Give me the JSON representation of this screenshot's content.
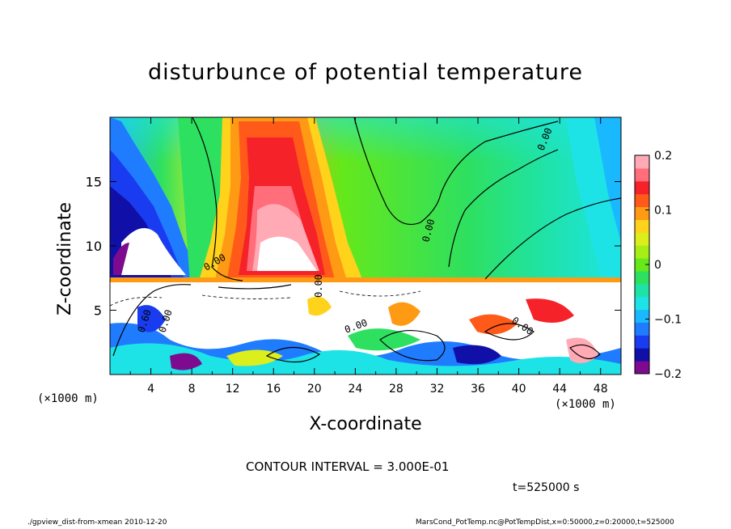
{
  "chart_data": {
    "type": "heatmap",
    "title": "disturbunce of potential temperature",
    "xlabel": "X-coordinate",
    "ylabel": "Z-coordinate",
    "x_unit": "(×1000 m)",
    "x_ticks": [
      4,
      8,
      12,
      16,
      20,
      24,
      28,
      32,
      36,
      40,
      44,
      48
    ],
    "y_ticks": [
      5,
      10,
      15
    ],
    "xlim": [
      0,
      50
    ],
    "ylim": [
      0,
      20
    ],
    "colorbar": {
      "ticks": [
        0.2,
        0.1,
        0,
        -0.1,
        -0.2
      ],
      "tick_labels": [
        "0.2",
        "0.1",
        "0",
        "−0.1",
        "−0.2"
      ],
      "range": [
        -0.2,
        0.2
      ],
      "colors": [
        "#7d0a8f",
        "#1010a8",
        "#1a3cf0",
        "#1f7cff",
        "#19b8ff",
        "#1ee3e6",
        "#1fe3a6",
        "#2ee060",
        "#66e81a",
        "#a6ee16",
        "#dcee1c",
        "#ffd21c",
        "#ff9a14",
        "#ff5a1a",
        "#f5222a",
        "#ff6e7a",
        "#ffaab4"
      ]
    },
    "contour_labels": [
      "0.00",
      "0.00",
      "0.00",
      "0.00",
      "0.60",
      "0.00",
      "0.00",
      "0.00"
    ],
    "contour_interval": "CONTOUR INTERVAL = 3.000E-01",
    "time": "t=525000 s"
  },
  "footer": {
    "left": "./gpview_dist-from-xmean   2010-12-20",
    "right": "MarsCond_PotTemp.nc@PotTempDist,x=0:50000,z=0:20000,t=525000"
  }
}
